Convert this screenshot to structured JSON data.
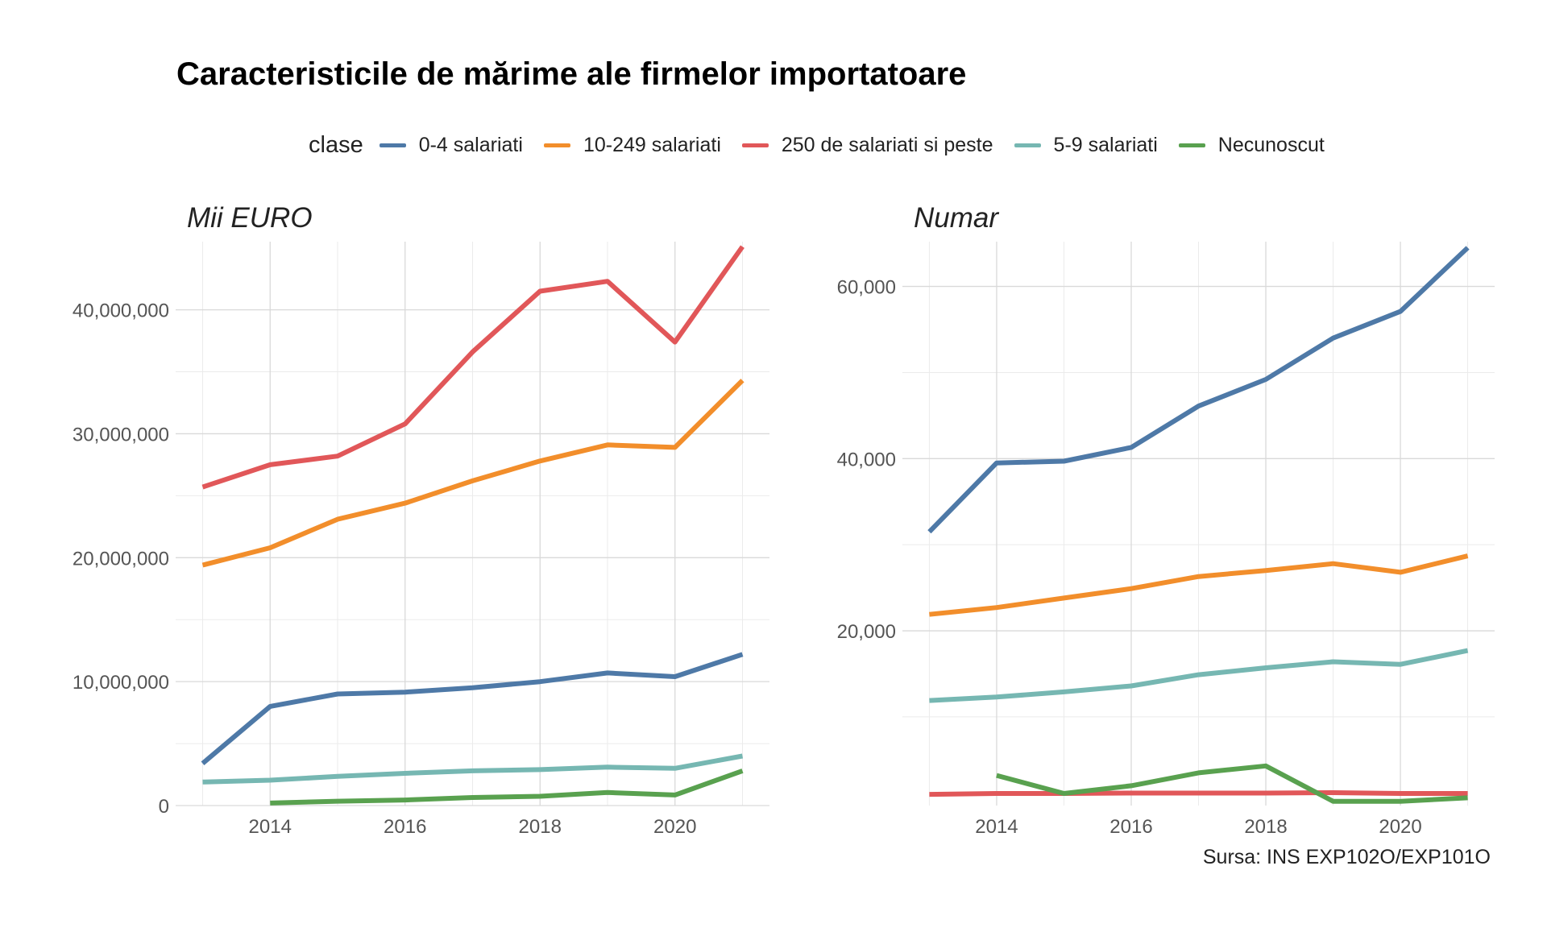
{
  "title": "Caracteristicile de mărime ale firmelor importatoare",
  "legend": {
    "title": "clase",
    "items": [
      {
        "label": "0-4 salariati",
        "color": "#4e79a7"
      },
      {
        "label": "10-249 salariati",
        "color": "#f28e2b"
      },
      {
        "label": "250 de salariati si peste",
        "color": "#e15759"
      },
      {
        "label": "5-9 salariati",
        "color": "#76b7b2"
      },
      {
        "label": "Necunoscut",
        "color": "#59a14f"
      }
    ]
  },
  "caption": "Sursa: INS EXP102O/EXP101O",
  "chart_data": [
    {
      "type": "line",
      "title": "Mii EURO",
      "x": [
        2013,
        2014,
        2015,
        2016,
        2017,
        2018,
        2019,
        2020,
        2021
      ],
      "xlim": [
        2012.6,
        2021.4
      ],
      "ylim": [
        0,
        45500000
      ],
      "x_ticks": [
        2014,
        2016,
        2018,
        2020
      ],
      "x_tick_labels": [
        "2014",
        "2016",
        "2018",
        "2020"
      ],
      "y_ticks": [
        0,
        10000000,
        20000000,
        30000000,
        40000000
      ],
      "y_tick_labels": [
        "0",
        "10,000,000",
        "20,000,000",
        "30,000,000",
        "40,000,000"
      ],
      "grid": true,
      "series": [
        {
          "name": "0-4 salariati",
          "color": "#4e79a7",
          "values": [
            3400000,
            8000000,
            9000000,
            9150000,
            9500000,
            10000000,
            10700000,
            10400000,
            12200000
          ]
        },
        {
          "name": "10-249 salariati",
          "color": "#f28e2b",
          "values": [
            19400000,
            20800000,
            23100000,
            24400000,
            26200000,
            27800000,
            29100000,
            28900000,
            34300000
          ]
        },
        {
          "name": "250 de salariati si peste",
          "color": "#e15759",
          "values": [
            25700000,
            27500000,
            28200000,
            30800000,
            36600000,
            41500000,
            42300000,
            37400000,
            45100000
          ]
        },
        {
          "name": "5-9 salariati",
          "color": "#76b7b2",
          "values": [
            1900000,
            2050000,
            2350000,
            2600000,
            2800000,
            2900000,
            3100000,
            3000000,
            4000000
          ]
        },
        {
          "name": "Necunoscut",
          "color": "#59a14f",
          "values": [
            null,
            200000,
            350000,
            450000,
            650000,
            750000,
            1050000,
            850000,
            2800000
          ]
        }
      ]
    },
    {
      "type": "line",
      "title": "Numar",
      "x": [
        2013,
        2014,
        2015,
        2016,
        2017,
        2018,
        2019,
        2020,
        2021
      ],
      "xlim": [
        2012.6,
        2021.4
      ],
      "ylim": [
        -300,
        65200
      ],
      "x_ticks": [
        2014,
        2016,
        2018,
        2020
      ],
      "x_tick_labels": [
        "2014",
        "2016",
        "2018",
        "2020"
      ],
      "y_ticks": [
        20000,
        40000,
        60000
      ],
      "y_tick_labels": [
        "20,000",
        "40,000",
        "60,000"
      ],
      "y_minor_ticks": [
        10000,
        30000,
        50000
      ],
      "grid": true,
      "series": [
        {
          "name": "0-4 salariati",
          "color": "#4e79a7",
          "values": [
            31500,
            39500,
            39700,
            41300,
            46100,
            49200,
            54000,
            57100,
            64500
          ]
        },
        {
          "name": "10-249 salariati",
          "color": "#f28e2b",
          "values": [
            21900,
            22700,
            23800,
            24900,
            26300,
            27000,
            27800,
            26800,
            28700
          ]
        },
        {
          "name": "250 de salariati si peste",
          "color": "#e15759",
          "values": [
            1000,
            1100,
            1100,
            1150,
            1150,
            1150,
            1200,
            1100,
            1100
          ]
        },
        {
          "name": "5-9 salariati",
          "color": "#76b7b2",
          "values": [
            11900,
            12300,
            12900,
            13600,
            14900,
            15700,
            16400,
            16100,
            17700
          ]
        },
        {
          "name": "Necunoscut",
          "color": "#59a14f",
          "values": [
            null,
            3200,
            1100,
            2000,
            3500,
            4300,
            200,
            200,
            600
          ]
        }
      ]
    }
  ]
}
